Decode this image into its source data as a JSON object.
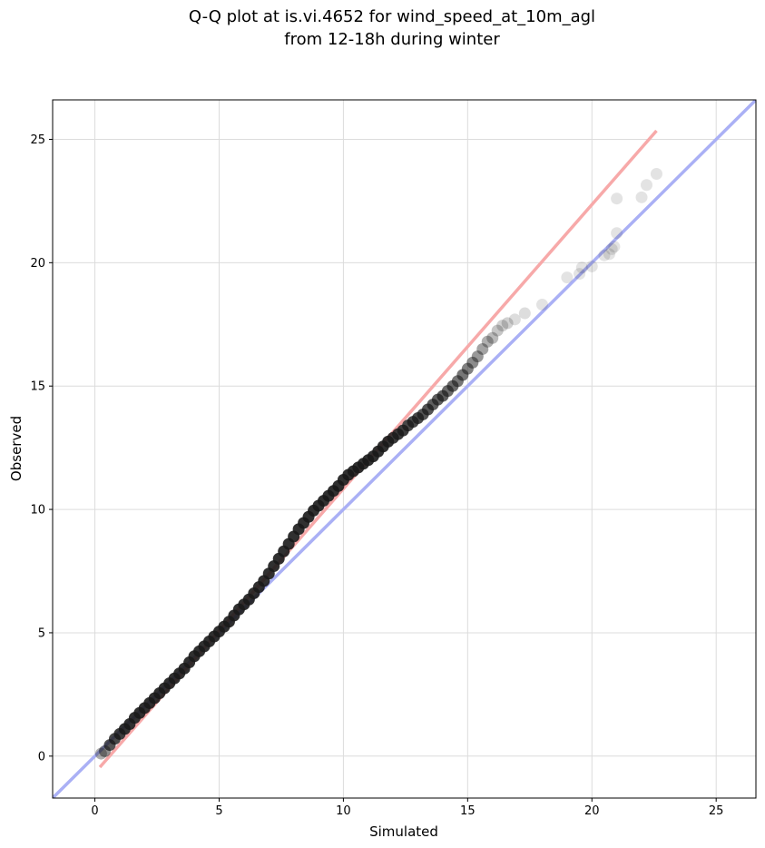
{
  "chart_data": {
    "type": "scatter",
    "title_lines": [
      "Q-Q plot at is.vi.4652 for wind_speed_at_10m_agl",
      "from 12-18h during winter"
    ],
    "xlabel": "Simulated",
    "ylabel": "Observed",
    "xlim": [
      -1.7,
      26.6
    ],
    "ylim": [
      -1.7,
      26.6
    ],
    "xticks": [
      0,
      5,
      10,
      15,
      20,
      25
    ],
    "yticks": [
      0,
      5,
      10,
      15,
      20,
      25
    ],
    "grid": true,
    "colors": {
      "points": "#1a1a1a",
      "identity_line": "#aab0f5",
      "fit_line": "#f7a9a9"
    },
    "series": [
      {
        "values_x": [
          0.25,
          0.4,
          0.6,
          0.8,
          1.0,
          1.2,
          1.4,
          1.6,
          1.8,
          2.0,
          2.2,
          2.4,
          2.6,
          2.8,
          3.0,
          3.2,
          3.4,
          3.6,
          3.8,
          4.0,
          4.2,
          4.4,
          4.6,
          4.8,
          5.0,
          5.2,
          5.4,
          5.6,
          5.8,
          6.0,
          6.2,
          6.4,
          6.6,
          6.8,
          7.0,
          7.2,
          7.4,
          7.6,
          7.8,
          8.0,
          8.2,
          8.4,
          8.6,
          8.8,
          9.0,
          9.2,
          9.4,
          9.6,
          9.8,
          10.0,
          10.2,
          10.4,
          10.6,
          10.8,
          11.0,
          11.2,
          11.4,
          11.6,
          11.8,
          12.0,
          12.2,
          12.4,
          12.6,
          12.8,
          13.0,
          13.2,
          13.4,
          13.6,
          13.8,
          14.0,
          14.2,
          14.4,
          14.6,
          14.8,
          15.0,
          15.2,
          15.4,
          15.6,
          15.8,
          16.0,
          16.2,
          16.4,
          16.6,
          16.9,
          17.3,
          18.0,
          19.0,
          19.5,
          19.6,
          20.0,
          20.5,
          20.7,
          20.8,
          20.9,
          21.0,
          22.0,
          22.2,
          22.6,
          21.0
        ],
        "values_y": [
          0.1,
          0.2,
          0.45,
          0.7,
          0.9,
          1.1,
          1.3,
          1.55,
          1.75,
          1.95,
          2.15,
          2.35,
          2.55,
          2.75,
          2.95,
          3.15,
          3.35,
          3.55,
          3.8,
          4.05,
          4.25,
          4.45,
          4.65,
          4.85,
          5.05,
          5.25,
          5.45,
          5.7,
          5.95,
          6.15,
          6.35,
          6.6,
          6.85,
          7.1,
          7.4,
          7.7,
          8.0,
          8.3,
          8.6,
          8.9,
          9.2,
          9.45,
          9.7,
          9.95,
          10.15,
          10.35,
          10.55,
          10.75,
          10.95,
          11.2,
          11.4,
          11.55,
          11.7,
          11.85,
          12.0,
          12.15,
          12.35,
          12.55,
          12.75,
          12.9,
          13.05,
          13.2,
          13.4,
          13.55,
          13.7,
          13.85,
          14.05,
          14.25,
          14.45,
          14.6,
          14.8,
          15.0,
          15.2,
          15.45,
          15.7,
          15.95,
          16.2,
          16.5,
          16.8,
          16.95,
          17.25,
          17.45,
          17.55,
          17.7,
          17.95,
          18.3,
          19.4,
          19.55,
          19.8,
          19.85,
          20.3,
          20.35,
          20.55,
          20.65,
          21.2,
          22.65,
          23.15,
          23.6,
          22.6
        ],
        "alphas": [
          0.35,
          0.5,
          0.75,
          0.8,
          0.85,
          0.9,
          0.9,
          0.9,
          0.9,
          0.9,
          0.9,
          0.9,
          0.9,
          0.9,
          0.9,
          0.9,
          0.9,
          0.9,
          0.9,
          0.9,
          0.9,
          0.9,
          0.9,
          0.9,
          0.9,
          0.9,
          0.9,
          0.9,
          0.9,
          0.9,
          0.9,
          0.9,
          0.9,
          0.9,
          0.9,
          0.9,
          0.9,
          0.9,
          0.9,
          0.9,
          0.9,
          0.9,
          0.9,
          0.9,
          0.9,
          0.9,
          0.9,
          0.9,
          0.9,
          0.9,
          0.9,
          0.9,
          0.9,
          0.9,
          0.9,
          0.9,
          0.9,
          0.9,
          0.9,
          0.85,
          0.85,
          0.85,
          0.8,
          0.8,
          0.8,
          0.75,
          0.75,
          0.7,
          0.7,
          0.7,
          0.65,
          0.65,
          0.6,
          0.6,
          0.55,
          0.5,
          0.45,
          0.4,
          0.35,
          0.3,
          0.25,
          0.2,
          0.2,
          0.15,
          0.15,
          0.12,
          0.12,
          0.12,
          0.12,
          0.12,
          0.12,
          0.12,
          0.12,
          0.12,
          0.12,
          0.12,
          0.12,
          0.12,
          0.12
        ]
      }
    ],
    "reference_lines": [
      {
        "role": "identity",
        "x": [
          -1.7,
          26.6
        ],
        "y": [
          -1.7,
          26.6
        ]
      },
      {
        "role": "fit",
        "x": [
          0.2,
          22.6
        ],
        "y": [
          -0.45,
          25.35
        ]
      }
    ]
  }
}
